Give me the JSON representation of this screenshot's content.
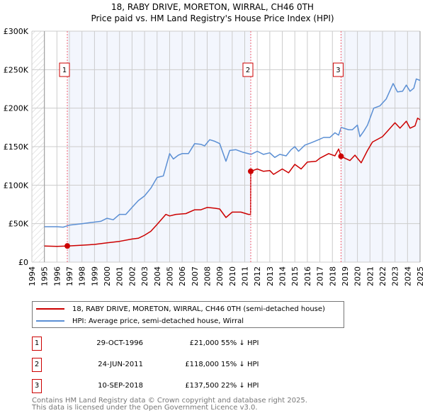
{
  "title": "18, RABY DRIVE, MORETON, WIRRAL, CH46 0TH",
  "subtitle": "Price paid vs. HM Land Registry's House Price Index (HPI)",
  "colors": {
    "price": "#cc0000",
    "hpi": "#5b8fd4",
    "shade": "#f3f6fd",
    "grid": "#cccccc"
  },
  "chart_data": {
    "type": "line",
    "title": "18, RABY DRIVE, MORETON, WIRRAL, CH46 0TH",
    "xlim": [
      1994,
      2025
    ],
    "ylim": [
      0,
      300000
    ],
    "yticks": [
      0,
      50000,
      100000,
      150000,
      200000,
      250000,
      300000
    ],
    "ytick_labels": [
      "£0",
      "£50K",
      "£100K",
      "£150K",
      "£200K",
      "£250K",
      "£300K"
    ],
    "xticks": [
      1994,
      1995,
      1996,
      1997,
      1998,
      1999,
      2000,
      2001,
      2002,
      2003,
      2004,
      2005,
      2006,
      2007,
      2008,
      2009,
      2010,
      2011,
      2012,
      2013,
      2014,
      2015,
      2016,
      2017,
      2018,
      2019,
      2020,
      2021,
      2022,
      2023,
      2024,
      2025
    ],
    "grid": true,
    "series": [
      {
        "name": "18, RABY DRIVE, MORETON, WIRRAL, CH46 0TH (semi-detached house)",
        "color": "#cc0000",
        "x": [
          1995,
          1996,
          1996.83,
          1998,
          1999,
          2000,
          2001,
          2002,
          2002.5,
          2003,
          2003.5,
          2004,
          2004.7,
          2005,
          2005.5,
          2006.3,
          2007,
          2007.5,
          2008,
          2008.6,
          2009,
          2009.5,
          2010,
          2010.7,
          2011.3,
          2011.47,
          2011.48,
          2012,
          2012.5,
          2013,
          2013.3,
          2014,
          2014.5,
          2015,
          2015.5,
          2016,
          2016.7,
          2017,
          2017.7,
          2018.2,
          2018.5,
          2018.69,
          2019,
          2019.4,
          2019.8,
          2020.3,
          2020.8,
          2021.2,
          2022,
          2022.5,
          2023,
          2023.4,
          2023.9,
          2024.2,
          2024.6,
          2024.8,
          2025
        ],
        "y": [
          21000,
          20500,
          21000,
          22000,
          23000,
          25000,
          27000,
          30000,
          31000,
          35000,
          40000,
          49000,
          62000,
          60000,
          62000,
          63000,
          68000,
          68000,
          71000,
          70000,
          69000,
          58000,
          65000,
          65000,
          62000,
          62000,
          118000,
          121000,
          118000,
          119000,
          114000,
          121000,
          116000,
          127000,
          121000,
          130000,
          131000,
          135000,
          141000,
          138000,
          147000,
          137500,
          135000,
          132000,
          139000,
          129000,
          145000,
          156000,
          163000,
          172000,
          181000,
          174000,
          183000,
          174000,
          177000,
          187000,
          185000
        ]
      },
      {
        "name": "HPI: Average price, semi-detached house, Wirral",
        "color": "#5b8fd4",
        "x": [
          1995,
          1996,
          1996.5,
          1997,
          1998,
          1999,
          1999.5,
          2000,
          2000.5,
          2001,
          2001.5,
          2002,
          2002.5,
          2003,
          2003.5,
          2004,
          2004.5,
          2005,
          2005.3,
          2005.7,
          2006,
          2006.5,
          2007,
          2007.5,
          2007.8,
          2008.2,
          2008.6,
          2009,
          2009.3,
          2009.5,
          2009.8,
          2010.3,
          2010.8,
          2011.5,
          2012,
          2012.5,
          2013,
          2013.4,
          2013.8,
          2014.3,
          2014.7,
          2015,
          2015.3,
          2015.8,
          2016.3,
          2016.9,
          2017.3,
          2017.8,
          2018.2,
          2018.5,
          2018.7,
          2019.3,
          2019.6,
          2020,
          2020.2,
          2020.5,
          2020.8,
          2021.3,
          2021.8,
          2022.3,
          2022.85,
          2023.2,
          2023.6,
          2023.9,
          2024.2,
          2024.5,
          2024.7,
          2025
        ],
        "y": [
          46000,
          46000,
          45500,
          48000,
          50000,
          52000,
          53000,
          57000,
          55000,
          62000,
          62000,
          71000,
          80000,
          86000,
          96000,
          110000,
          112000,
          141000,
          134000,
          139000,
          141000,
          141000,
          154000,
          153000,
          151000,
          159000,
          157000,
          154000,
          140000,
          131000,
          145000,
          146000,
          143000,
          140000,
          144000,
          140000,
          142000,
          136000,
          140000,
          138000,
          146000,
          150000,
          144000,
          152000,
          155000,
          159000,
          162000,
          162000,
          168000,
          165000,
          175000,
          172000,
          172000,
          178000,
          163000,
          170000,
          178000,
          200000,
          203000,
          212000,
          232000,
          221000,
          222000,
          230000,
          222000,
          226000,
          238000,
          236000
        ]
      }
    ],
    "annotations": [
      {
        "label": "1",
        "x": 1996.83,
        "y": 21000
      },
      {
        "label": "2",
        "x": 2011.48,
        "y": 118000
      },
      {
        "label": "3",
        "x": 2018.69,
        "y": 137500
      }
    ]
  },
  "legend": {
    "price_label": "18, RABY DRIVE, MORETON, WIRRAL, CH46 0TH (semi-detached house)",
    "hpi_label": "HPI: Average price, semi-detached house, Wirral"
  },
  "sales": [
    {
      "num": "1",
      "date": "29-OCT-1996",
      "price": "£21,000",
      "hpi": "55% ↓ HPI"
    },
    {
      "num": "2",
      "date": "24-JUN-2011",
      "price": "£118,000",
      "hpi": "15% ↓ HPI"
    },
    {
      "num": "3",
      "date": "10-SEP-2018",
      "price": "£137,500",
      "hpi": "22% ↓ HPI"
    }
  ],
  "footer": {
    "line1": "Contains HM Land Registry data © Crown copyright and database right 2025.",
    "line2": "This data is licensed under the Open Government Licence v3.0."
  }
}
